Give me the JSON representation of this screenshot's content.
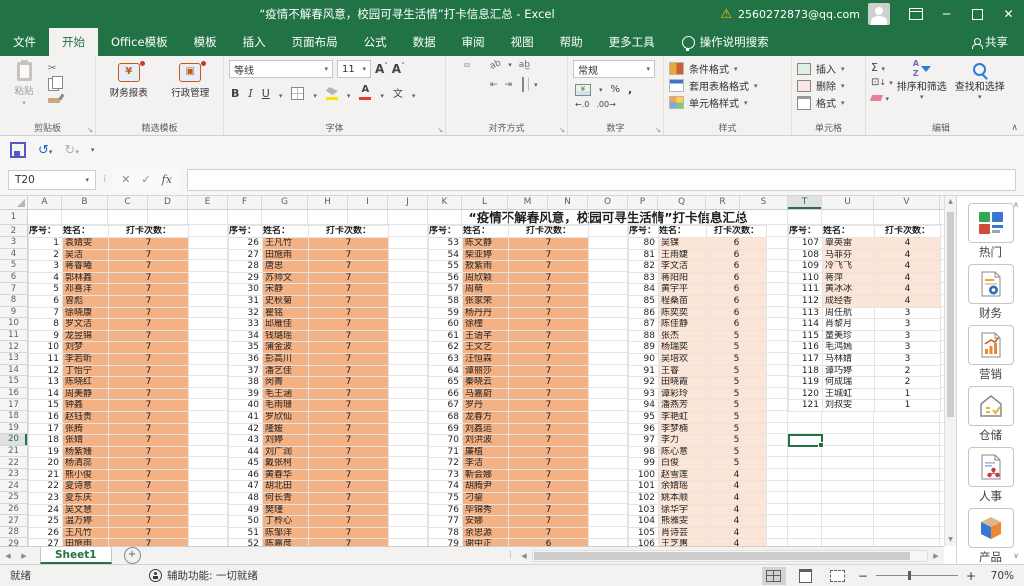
{
  "titlebar": {
    "title": "“疫情不解春风意，校园可寻生活情”打卡信息汇总 - Excel",
    "account": "2560272873@qq.com"
  },
  "tabs": {
    "file": "文件",
    "items": [
      "开始",
      "Office模板",
      "模板",
      "插入",
      "页面布局",
      "公式",
      "数据",
      "审阅",
      "视图",
      "帮助",
      "更多工具"
    ],
    "active_index": 0,
    "search_hint": "操作说明搜索",
    "share": "共享"
  },
  "ribbon": {
    "clipboard": {
      "label": "剪贴板",
      "paste": "粘贴"
    },
    "templates": {
      "label": "精选模板",
      "buttons": [
        "财务报表",
        "行政管理"
      ]
    },
    "font": {
      "label": "字体",
      "name": "等线",
      "size": "11",
      "bold": "B",
      "italic": "I",
      "underline": "U",
      "phonetic": "文"
    },
    "alignment": {
      "label": "对齐方式"
    },
    "number": {
      "label": "数字",
      "format": "常规"
    },
    "styles": {
      "label": "样式",
      "items": [
        "条件格式",
        "套用表格格式",
        "单元格样式"
      ]
    },
    "cells": {
      "label": "单元格",
      "items": [
        "插入",
        "删除",
        "格式"
      ]
    },
    "editing": {
      "label": "编辑",
      "sort": "排序和筛选",
      "find": "查找和选择"
    }
  },
  "formula": {
    "name_box": "T20",
    "fx": "fx",
    "value": ""
  },
  "sheet": {
    "title": "“疫情不解春风意，校园可寻生活情”打卡信息汇总",
    "column_letters": [
      "A",
      "B",
      "C",
      "D",
      "E",
      "F",
      "G",
      "H",
      "I",
      "J",
      "K",
      "L",
      "M",
      "N",
      "O",
      "P",
      "Q",
      "R",
      "S",
      "T",
      "U",
      "V"
    ],
    "row_numbers": [
      1,
      2,
      3,
      4,
      5,
      6,
      7,
      8,
      9,
      10,
      11,
      12,
      13,
      14,
      15,
      16,
      17,
      18,
      19,
      20,
      21,
      22,
      23,
      24,
      25,
      26,
      27,
      28,
      29
    ],
    "header": {
      "no": "序号：",
      "name": "姓名：",
      "count": "打卡次数："
    },
    "selection": "T20",
    "highlight_strong": "#F4B183",
    "highlight_light": "#FCE4D6",
    "groups": [
      {
        "fill": "#F4B183",
        "rows": [
          {
            "no": 1,
            "name": "袁婧雯",
            "count": 7
          },
          {
            "no": 2,
            "name": "吴洁",
            "count": 7
          },
          {
            "no": 3,
            "name": "蒋睿曦",
            "count": 7
          },
          {
            "no": 4,
            "name": "郭林鑫",
            "count": 7
          },
          {
            "no": 5,
            "name": "邓喜洋",
            "count": 7
          },
          {
            "no": 6,
            "name": "曾彪",
            "count": 7
          },
          {
            "no": 7,
            "name": "徐晓康",
            "count": 7
          },
          {
            "no": 8,
            "name": "罗文洁",
            "count": 7
          },
          {
            "no": 9,
            "name": "龙昱锦",
            "count": 7
          },
          {
            "no": 10,
            "name": "刘梦",
            "count": 7
          },
          {
            "no": 11,
            "name": "李若昕",
            "count": 7
          },
          {
            "no": 12,
            "name": "丁怡宁",
            "count": 7
          },
          {
            "no": 13,
            "name": "陈晓红",
            "count": 7
          },
          {
            "no": 14,
            "name": "周美静",
            "count": 7
          },
          {
            "no": 15,
            "name": "钟鑫",
            "count": 7
          },
          {
            "no": 16,
            "name": "赵钰贵",
            "count": 7
          },
          {
            "no": 17,
            "name": "张腾",
            "count": 7
          },
          {
            "no": 18,
            "name": "张婧",
            "count": 7
          },
          {
            "no": 19,
            "name": "杨紫姗",
            "count": 7
          },
          {
            "no": 20,
            "name": "杨清蕊",
            "count": 7
          },
          {
            "no": 21,
            "name": "熊小俊",
            "count": 7
          },
          {
            "no": 22,
            "name": "夏诗意",
            "count": 7
          },
          {
            "no": 23,
            "name": "夏东庆",
            "count": 7
          },
          {
            "no": 24,
            "name": "吴文慧",
            "count": 7
          },
          {
            "no": 25,
            "name": "温万婷",
            "count": 7
          },
          {
            "no": 26,
            "name": "王凡竹",
            "count": 7
          },
          {
            "no": 27,
            "name": "田施雨",
            "count": 7
          }
        ]
      },
      {
        "fill": "#F4B183",
        "rows": [
          {
            "no": 26,
            "name": "王凡竹",
            "count": 7
          },
          {
            "no": 27,
            "name": "田施雨",
            "count": 7
          },
          {
            "no": 28,
            "name": "唐思",
            "count": 7
          },
          {
            "no": 29,
            "name": "苏帅文",
            "count": 7
          },
          {
            "no": 30,
            "name": "宋静",
            "count": 7
          },
          {
            "no": 31,
            "name": "史秋菊",
            "count": 7
          },
          {
            "no": 32,
            "name": "瞿铭",
            "count": 7
          },
          {
            "no": 33,
            "name": "邱雁佳",
            "count": 7
          },
          {
            "no": 34,
            "name": "钱璐瑶",
            "count": 7
          },
          {
            "no": 35,
            "name": "蒲金波",
            "count": 7
          },
          {
            "no": 36,
            "name": "彭高川",
            "count": 7
          },
          {
            "no": 37,
            "name": "潘艺佳",
            "count": 7
          },
          {
            "no": 38,
            "name": "闵菁",
            "count": 7
          },
          {
            "no": 39,
            "name": "毛王涵",
            "count": 7
          },
          {
            "no": 40,
            "name": "毛雨珊",
            "count": 7
          },
          {
            "no": 41,
            "name": "罗欣仙",
            "count": 7
          },
          {
            "no": 42,
            "name": "隆媛",
            "count": 7
          },
          {
            "no": 43,
            "name": "刘婷",
            "count": 7
          },
          {
            "no": 44,
            "name": "刘广润",
            "count": 7
          },
          {
            "no": 45,
            "name": "戴张柯",
            "count": 7
          },
          {
            "no": 46,
            "name": "黄春华",
            "count": 7
          },
          {
            "no": 47,
            "name": "胡北田",
            "count": 7
          },
          {
            "no": 48,
            "name": "何长青",
            "count": 7
          },
          {
            "no": 49,
            "name": "樊瑾",
            "count": 7
          },
          {
            "no": 50,
            "name": "丁柃心",
            "count": 7
          },
          {
            "no": 51,
            "name": "陈邹洋",
            "count": 7
          },
          {
            "no": 52,
            "name": "陈嘉彦",
            "count": 7
          }
        ]
      },
      {
        "fill": "#F4B183",
        "rows": [
          {
            "no": 53,
            "name": "陈文静",
            "count": 7
          },
          {
            "no": 54,
            "name": "柴亚婷",
            "count": 7
          },
          {
            "no": 55,
            "name": "敖紫雨",
            "count": 7
          },
          {
            "no": 56,
            "name": "周欣颖",
            "count": 7
          },
          {
            "no": 57,
            "name": "周萌",
            "count": 7
          },
          {
            "no": 58,
            "name": "张家荣",
            "count": 7
          },
          {
            "no": 59,
            "name": "杨丹丹",
            "count": 7
          },
          {
            "no": 60,
            "name": "徐橦",
            "count": 7
          },
          {
            "no": 61,
            "name": "王语芊",
            "count": 7
          },
          {
            "no": 62,
            "name": "王文艺",
            "count": 7
          },
          {
            "no": 63,
            "name": "汪恒霖",
            "count": 7
          },
          {
            "no": 64,
            "name": "谭丽莎",
            "count": 7
          },
          {
            "no": 65,
            "name": "秦晓云",
            "count": 7
          },
          {
            "no": 66,
            "name": "马嘉蔚",
            "count": 7
          },
          {
            "no": 67,
            "name": "罗丹",
            "count": 7
          },
          {
            "no": 68,
            "name": "龙春方",
            "count": 7
          },
          {
            "no": 69,
            "name": "刘鑫运",
            "count": 7
          },
          {
            "no": 70,
            "name": "刘洪波",
            "count": 7
          },
          {
            "no": 71,
            "name": "廉植",
            "count": 7
          },
          {
            "no": 72,
            "name": "李洁",
            "count": 7
          },
          {
            "no": 73,
            "name": "靳会娜",
            "count": 7
          },
          {
            "no": 74,
            "name": "胡腾尹",
            "count": 7
          },
          {
            "no": 75,
            "name": "刁鋆",
            "count": 7
          },
          {
            "no": 76,
            "name": "毕锦秀",
            "count": 7
          },
          {
            "no": 77,
            "name": "安娜",
            "count": 7
          },
          {
            "no": 78,
            "name": "余思源",
            "count": 7
          },
          {
            "no": 79,
            "name": "谢中正",
            "count": 6
          }
        ]
      },
      {
        "fill": "#FCE4D6",
        "rows": [
          {
            "no": 80,
            "name": "吴锞",
            "count": 6
          },
          {
            "no": 81,
            "name": "王雨婕",
            "count": 6
          },
          {
            "no": 82,
            "name": "李文洁",
            "count": 6
          },
          {
            "no": 83,
            "name": "蒋阳阳",
            "count": 6
          },
          {
            "no": 84,
            "name": "黄宇平",
            "count": 6
          },
          {
            "no": 85,
            "name": "程桑苗",
            "count": 6
          },
          {
            "no": 86,
            "name": "陈奕奕",
            "count": 6
          },
          {
            "no": 87,
            "name": "陈佳静",
            "count": 6
          },
          {
            "no": 88,
            "name": "张杰",
            "count": 5
          },
          {
            "no": 89,
            "name": "杨瑞奕",
            "count": 5
          },
          {
            "no": 90,
            "name": "吴培欢",
            "count": 5
          },
          {
            "no": 91,
            "name": "王睿",
            "count": 5
          },
          {
            "no": 92,
            "name": "田晓霞",
            "count": 5
          },
          {
            "no": 93,
            "name": "谭彩玲",
            "count": 5
          },
          {
            "no": 94,
            "name": "潘燕芳",
            "count": 5
          },
          {
            "no": 95,
            "name": "李艳虹",
            "count": 5
          },
          {
            "no": 96,
            "name": "李梦楠",
            "count": 5
          },
          {
            "no": 97,
            "name": "李力",
            "count": 5
          },
          {
            "no": 98,
            "name": "陈心意",
            "count": 5
          },
          {
            "no": 99,
            "name": "白俊",
            "count": 5
          },
          {
            "no": 100,
            "name": "赵雪莲",
            "count": 4
          },
          {
            "no": 101,
            "name": "余婧瑶",
            "count": 4
          },
          {
            "no": 102,
            "name": "姚本顺",
            "count": 4
          },
          {
            "no": 103,
            "name": "徐华宇",
            "count": 4
          },
          {
            "no": 104,
            "name": "熊雅雯",
            "count": 4
          },
          {
            "no": 105,
            "name": "肖诗芸",
            "count": 4
          },
          {
            "no": 106,
            "name": "王芝惠",
            "count": 4
          }
        ]
      },
      {
        "fill": "#FCE4D6",
        "rows": [
          {
            "no": 107,
            "name": "覃英雷",
            "count": 4
          },
          {
            "no": 108,
            "name": "马菲芬",
            "count": 4
          },
          {
            "no": 109,
            "name": "冷飞飞",
            "count": 4
          },
          {
            "no": 110,
            "name": "蒋萍",
            "count": 4
          },
          {
            "no": 111,
            "name": "黄冰冰",
            "count": 4
          },
          {
            "no": 112,
            "name": "成经香",
            "count": 4
          },
          {
            "no": 113,
            "name": "周任航",
            "count": 3,
            "hl": false
          },
          {
            "no": 114,
            "name": "肖黎月",
            "count": 3,
            "hl": false
          },
          {
            "no": 115,
            "name": "童美珍",
            "count": 3,
            "hl": false
          },
          {
            "no": 116,
            "name": "毛鸿嫣",
            "count": 3,
            "hl": false
          },
          {
            "no": 117,
            "name": "马林婧",
            "count": 3,
            "hl": false
          },
          {
            "no": 118,
            "name": "谭巧婷",
            "count": 2,
            "hl": false
          },
          {
            "no": 119,
            "name": "何成瑞",
            "count": 2,
            "hl": false
          },
          {
            "no": 120,
            "name": "王城虹",
            "count": 1,
            "hl": false
          },
          {
            "no": 121,
            "name": "刘叔雯",
            "count": 1,
            "hl": false
          }
        ]
      }
    ]
  },
  "sheet_tabs": {
    "active": "Sheet1"
  },
  "status": {
    "ready": "就绪",
    "accessibility": "辅助功能: 一切就绪",
    "zoom": "70%"
  },
  "sidebar": {
    "items": [
      {
        "label": "热门",
        "icon": "hot"
      },
      {
        "label": "财务",
        "icon": "finance"
      },
      {
        "label": "营销",
        "icon": "marketing"
      },
      {
        "label": "仓储",
        "icon": "warehouse"
      },
      {
        "label": "人事",
        "icon": "hr"
      },
      {
        "label": "产品",
        "icon": "product"
      }
    ]
  }
}
